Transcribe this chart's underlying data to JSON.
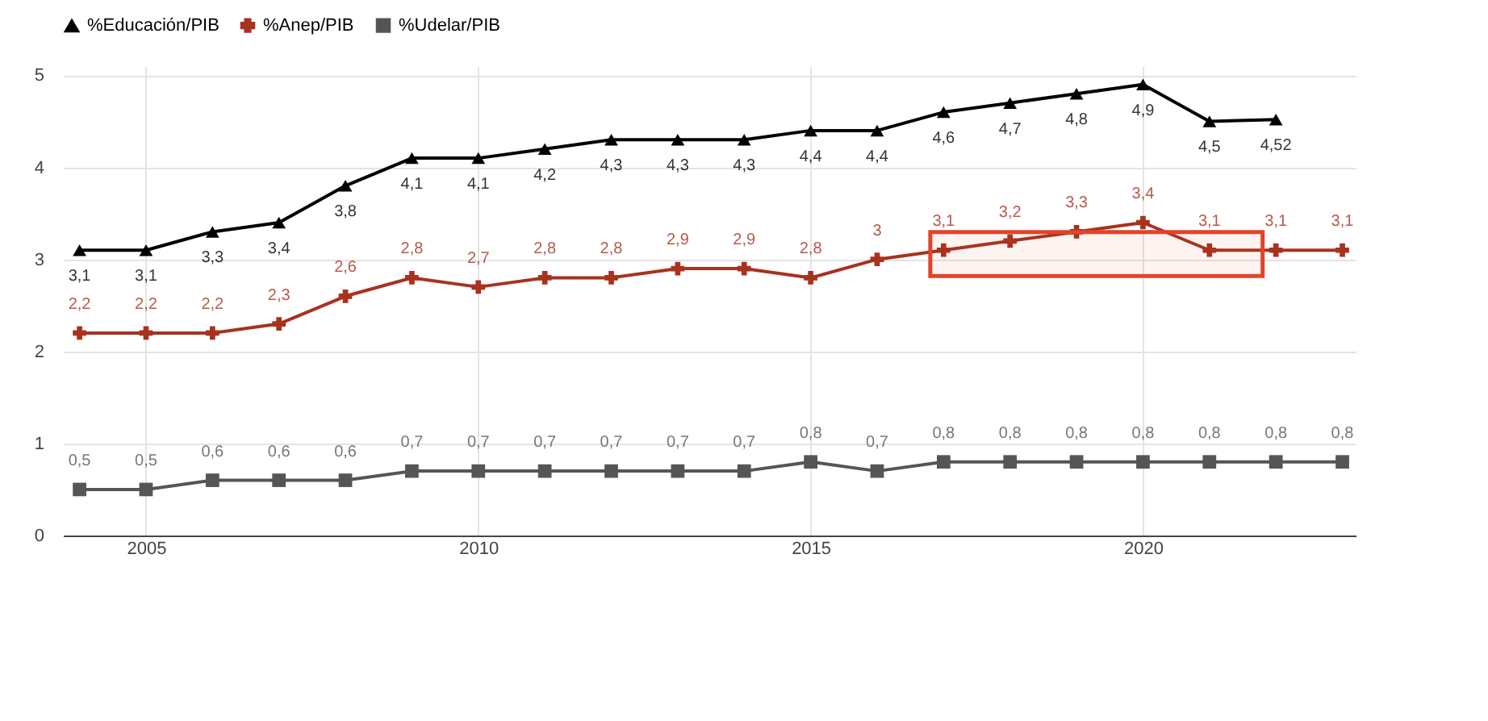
{
  "chart_data": {
    "type": "line",
    "x": [
      2004,
      2005,
      2006,
      2007,
      2008,
      2009,
      2010,
      2011,
      2012,
      2013,
      2014,
      2015,
      2016,
      2017,
      2018,
      2019,
      2020,
      2021,
      2022,
      2023
    ],
    "series": [
      {
        "name": "%Educación/PIB",
        "color": "#000000",
        "marker": "triangle",
        "values": [
          3.1,
          3.1,
          3.3,
          3.4,
          3.8,
          4.1,
          4.1,
          4.2,
          4.3,
          4.3,
          4.3,
          4.4,
          4.4,
          4.6,
          4.7,
          4.8,
          4.9,
          4.5,
          4.52,
          null
        ],
        "value_labels": [
          "3,1",
          "3,1",
          "3,3",
          "3,4",
          "3,8",
          "4,1",
          "4,1",
          "4,2",
          "4,3",
          "4,3",
          "4,3",
          "4,4",
          "4,4",
          "4,6",
          "4,7",
          "4,8",
          "4,9",
          "4,5",
          "4,52",
          null
        ]
      },
      {
        "name": "%Anep/PIB",
        "color": "#a8321e",
        "marker": "cross",
        "values": [
          2.2,
          2.2,
          2.2,
          2.3,
          2.6,
          2.8,
          2.7,
          2.8,
          2.8,
          2.9,
          2.9,
          2.8,
          3,
          3.1,
          3.2,
          3.3,
          3.4,
          3.1,
          3.1,
          3.1
        ],
        "value_labels": [
          "2,2",
          "2,2",
          "2,2",
          "2,3",
          "2,6",
          "2,8",
          "2,7",
          "2,8",
          "2,8",
          "2,9",
          "2,9",
          "2,8",
          "3",
          "3,1",
          "3,2",
          "3,3",
          "3,4",
          "3,1",
          "3,1",
          "3,1"
        ]
      },
      {
        "name": "%Udelar/PIB",
        "color": "#555555",
        "marker": "square",
        "values": [
          0.5,
          0.5,
          0.6,
          0.6,
          0.6,
          0.7,
          0.7,
          0.7,
          0.7,
          0.7,
          0.7,
          0.8,
          0.7,
          0.8,
          0.8,
          0.8,
          0.8,
          0.8,
          0.8,
          0.8
        ],
        "value_labels": [
          "0,5",
          "0,5",
          "0,6",
          "0,6",
          "0,6",
          "0,7",
          "0,7",
          "0,7",
          "0,7",
          "0,7",
          "0,7",
          "0,8",
          "0,7",
          "0,8",
          "0,8",
          "0,8",
          "0,8",
          "0,8",
          "0,8",
          "0,8"
        ]
      }
    ],
    "xlim": [
      2003.75,
      2023.2
    ],
    "xticks": [
      2005,
      2010,
      2015,
      2020
    ],
    "ylim": [
      0,
      5.1
    ],
    "yticks": [
      0,
      1,
      2,
      3,
      4,
      5
    ],
    "grid": true,
    "legend": "top",
    "line_style": "solid",
    "bands": [
      {
        "axis": "x",
        "from": 2016.8,
        "to": 2021.8,
        "color": "#e0442a"
      }
    ]
  }
}
